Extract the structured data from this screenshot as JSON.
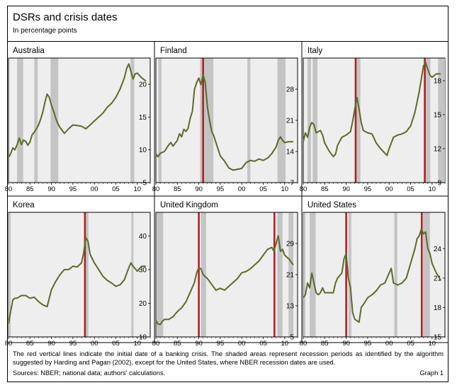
{
  "header": {
    "title": "DSRs and crisis dates",
    "subtitle": "In percentage points"
  },
  "footer": {
    "note": "The red vertical lines indicate the initial date of a banking crisis. The shaded areas represent recession periods as identified by the algorithm suggested by Harding and Pagan (2002), except for the United States, where NBER recession dates are used.",
    "sources": "Sources: NBER; national data; authors' calculations.",
    "graph_number": "Graph 1"
  },
  "colors": {
    "line": "#5a6b2a",
    "crisis": "#b22222",
    "recession": "#c4c4c4",
    "panel_bg": "#eeeeee"
  },
  "chart_data": [
    {
      "type": "line",
      "title": "Australia",
      "x_range": [
        1980,
        2013
      ],
      "x_ticks": [
        80,
        85,
        90,
        95,
        "00",
        "05",
        10
      ],
      "ylim": [
        5,
        24
      ],
      "y_ticks": [
        5,
        10,
        15,
        20
      ],
      "recessions": [
        [
          1982.0,
          1983.4
        ],
        [
          1986.0,
          1986.8
        ],
        [
          1989.8,
          1991.6
        ],
        [
          2008.4,
          2009.3
        ]
      ],
      "crises": [],
      "series": [
        {
          "x": [
            1980,
            1980.5,
            1981,
            1981.5,
            1982,
            1982.5,
            1983,
            1983.5,
            1984,
            1984.5,
            1985,
            1985.5,
            1986,
            1986.5,
            1987,
            1987.5,
            1988,
            1988.5,
            1989,
            1989.5,
            1990,
            1990.5,
            1991,
            1991.5,
            1992,
            1993,
            1994,
            1995,
            1996,
            1997,
            1998,
            1999,
            2000,
            2001,
            2002,
            2003,
            2004,
            2005,
            2006,
            2007,
            2007.5,
            2008,
            2008.5,
            2009,
            2009.5,
            2010,
            2011,
            2012
          ],
          "values": [
            8.8,
            9.4,
            10.3,
            10.0,
            10.8,
            11.8,
            10.8,
            11.5,
            11.3,
            10.7,
            11.2,
            12.3,
            12.7,
            13.2,
            13.8,
            14.7,
            15.8,
            17.3,
            18.5,
            18.0,
            16.8,
            15.9,
            14.8,
            14.0,
            13.4,
            12.5,
            13.2,
            13.8,
            13.7,
            13.6,
            13.2,
            13.8,
            14.4,
            15.0,
            15.6,
            16.5,
            17.1,
            18.0,
            19.3,
            21.0,
            22.4,
            23.1,
            22.0,
            20.8,
            21.6,
            21.7,
            21.0,
            20.5
          ]
        }
      ]
    },
    {
      "type": "line",
      "title": "Finland",
      "x_range": [
        1980,
        2013
      ],
      "x_ticks": [
        80,
        85,
        90,
        95,
        "00",
        "05",
        10
      ],
      "ylim": [
        7,
        35
      ],
      "y_ticks": [
        7,
        14,
        21,
        28
      ],
      "recessions": [
        [
          1980.6,
          1981.3
        ],
        [
          1990.3,
          1993.4
        ],
        [
          2001.3,
          2002.0
        ],
        [
          2008.3,
          2010.2
        ]
      ],
      "crises": [
        1991.0
      ],
      "series": [
        {
          "x": [
            1980,
            1980.5,
            1981,
            1982,
            1983,
            1983.5,
            1984,
            1985,
            1985.5,
            1986,
            1986.5,
            1987,
            1987.5,
            1988,
            1988.5,
            1989,
            1989.5,
            1990,
            1990.5,
            1991,
            1991.5,
            1992,
            1992.5,
            1993,
            1993.5,
            1994,
            1995,
            1996,
            1997,
            1998,
            1999,
            2000,
            2001,
            2002,
            2003,
            2004,
            2005,
            2006,
            2007,
            2008,
            2008.5,
            2009,
            2009.5,
            2010,
            2011,
            2012
          ],
          "values": [
            13.5,
            12.8,
            13.6,
            14.0,
            15.5,
            16.0,
            15.2,
            16.5,
            18.0,
            17.3,
            19.0,
            18.5,
            19.2,
            21.5,
            23.0,
            28.0,
            29.5,
            30.5,
            29.0,
            31.2,
            29.5,
            24.0,
            21.0,
            18.5,
            17.5,
            16.0,
            13.0,
            11.8,
            10.3,
            9.8,
            10.0,
            10.2,
            11.5,
            12.0,
            11.8,
            12.3,
            12.0,
            12.5,
            13.5,
            15.0,
            16.5,
            17.3,
            16.5,
            16.0,
            16.2,
            16.2
          ]
        }
      ]
    },
    {
      "type": "line",
      "title": "Italy",
      "x_range": [
        1980,
        2013
      ],
      "x_ticks": [
        80,
        85,
        90,
        95,
        "00",
        "05",
        10
      ],
      "ylim": [
        9,
        20
      ],
      "y_ticks": [
        9,
        12,
        15,
        18
      ],
      "recessions": [
        [
          1981.0,
          1981.8
        ],
        [
          1982.2,
          1983.3
        ],
        [
          1992.2,
          1993.3
        ],
        [
          2008.2,
          2009.6
        ],
        [
          2011.4,
          2013.0
        ]
      ],
      "crises": [
        1992.2,
        2008.3
      ],
      "series": [
        {
          "x": [
            1980,
            1980.5,
            1981,
            1981.5,
            1982,
            1982.5,
            1983,
            1983.5,
            1984,
            1984.5,
            1985,
            1986,
            1987,
            1987.5,
            1988,
            1989,
            1990,
            1991,
            1991.5,
            1992,
            1992.5,
            1993,
            1993.5,
            1994,
            1995,
            1996,
            1997,
            1998,
            1999,
            1999.5,
            2000,
            2001,
            2002,
            2003,
            2004,
            2005,
            2006,
            2007,
            2007.5,
            2008,
            2008.5,
            2009,
            2009.5,
            2010,
            2011,
            2012
          ],
          "values": [
            12.6,
            13.4,
            13.0,
            13.9,
            14.3,
            14.1,
            13.4,
            13.5,
            13.6,
            13.2,
            12.5,
            11.8,
            11.3,
            11.5,
            12.3,
            13.0,
            13.2,
            13.5,
            14.4,
            15.5,
            16.5,
            15.5,
            14.3,
            13.6,
            13.4,
            13.3,
            12.5,
            12.0,
            11.6,
            11.4,
            12.0,
            13.0,
            13.2,
            13.3,
            13.5,
            14.0,
            15.2,
            17.0,
            18.2,
            19.3,
            19.6,
            19.0,
            18.5,
            18.3,
            18.6,
            18.6
          ]
        }
      ]
    },
    {
      "type": "line",
      "title": "Korea",
      "x_range": [
        1980,
        2013
      ],
      "x_ticks": [
        80,
        85,
        90,
        95,
        "00",
        "05",
        10
      ],
      "ylim": [
        10,
        47
      ],
      "y_ticks": [
        10,
        20,
        30,
        40
      ],
      "recessions": [
        [
          1980.0,
          1980.5
        ],
        [
          1997.9,
          1998.6
        ],
        [
          2008.6,
          2009.1
        ]
      ],
      "crises": [
        1997.8
      ],
      "series": [
        {
          "x": [
            1980,
            1980.5,
            1981,
            1981.5,
            1982,
            1983,
            1984,
            1985,
            1986,
            1987,
            1988,
            1989,
            1990,
            1991,
            1992,
            1993,
            1994,
            1995,
            1996,
            1997,
            1997.5,
            1998,
            1998.5,
            1999,
            2000,
            2001,
            2002,
            2003,
            2004,
            2005,
            2006,
            2007,
            2008,
            2008.5,
            2009,
            2010,
            2011,
            2012
          ],
          "values": [
            14.0,
            17.5,
            21.0,
            21.5,
            21.5,
            22.3,
            22.3,
            21.5,
            21.8,
            20.5,
            19.5,
            19.0,
            24.0,
            26.5,
            28.5,
            30.0,
            30.0,
            31.0,
            30.8,
            32.0,
            35.0,
            39.5,
            38.5,
            34.5,
            32.0,
            30.0,
            28.0,
            26.8,
            26.0,
            25.0,
            25.5,
            27.0,
            30.5,
            32.0,
            31.0,
            29.5,
            31.0,
            31.0
          ]
        }
      ]
    },
    {
      "type": "line",
      "title": "United Kingdom",
      "x_range": [
        1980,
        2013
      ],
      "x_ticks": [
        80,
        85,
        90,
        95,
        "00",
        "05",
        10
      ],
      "ylim": [
        5,
        37
      ],
      "y_ticks": [
        5,
        13,
        21,
        29
      ],
      "recessions": [
        [
          1980.2,
          1981.7
        ],
        [
          1990.5,
          1991.7
        ],
        [
          2008.3,
          2009.5
        ],
        [
          2010.9,
          2012.0
        ]
      ],
      "crises": [
        1990.0,
        2007.6
      ],
      "series": [
        {
          "x": [
            1980,
            1980.5,
            1981,
            1981.5,
            1982,
            1983,
            1984,
            1985,
            1986,
            1987,
            1988,
            1989,
            1989.5,
            1990,
            1990.5,
            1991,
            1992,
            1993,
            1994,
            1995,
            1996,
            1997,
            1998,
            1999,
            2000,
            2001,
            2002,
            2003,
            2004,
            2005,
            2006,
            2007,
            2007.5,
            2008,
            2008.5,
            2009,
            2009.5,
            2010,
            2011,
            2012
          ],
          "values": [
            9.2,
            8.3,
            8.2,
            9.0,
            9.5,
            9.5,
            10.2,
            11.5,
            12.5,
            14.0,
            16.5,
            19.0,
            21.5,
            22.8,
            22.5,
            21.0,
            20.0,
            18.5,
            17.0,
            17.5,
            17.0,
            18.0,
            19.0,
            20.0,
            21.5,
            21.8,
            22.5,
            23.5,
            24.5,
            26.0,
            27.5,
            28.0,
            27.0,
            29.0,
            31.0,
            27.0,
            27.5,
            26.0,
            25.0,
            23.5
          ]
        }
      ]
    },
    {
      "type": "line",
      "title": "United States",
      "x_range": [
        1980,
        2013
      ],
      "x_ticks": [
        80,
        85,
        90,
        95,
        "00",
        "05",
        10
      ],
      "ylim": [
        15,
        27.7
      ],
      "y_ticks": [
        15,
        18,
        21,
        24
      ],
      "recessions": [
        [
          1980.0,
          1980.5
        ],
        [
          1981.5,
          1982.9
        ],
        [
          1990.5,
          1991.2
        ],
        [
          2001.2,
          2001.9
        ],
        [
          2007.9,
          2009.5
        ]
      ],
      "crises": [
        1990.0,
        2007.6
      ],
      "series": [
        {
          "x": [
            1980,
            1980.5,
            1981,
            1981.5,
            1982,
            1983,
            1983.5,
            1984,
            1984.5,
            1985,
            1986,
            1987,
            1987.5,
            1988,
            1989,
            1989.5,
            1990,
            1990.5,
            1991,
            1991.5,
            1992,
            1993,
            1993.5,
            1994,
            1995,
            1996,
            1997,
            1998,
            1999,
            2000,
            2000.5,
            2001,
            2002,
            2003,
            2004,
            2005,
            2006,
            2006.5,
            2007,
            2007.5,
            2008,
            2008.5,
            2009,
            2009.5,
            2010,
            2011,
            2012
          ],
          "values": [
            19.0,
            19.3,
            20.5,
            20.0,
            21.5,
            19.5,
            19.3,
            19.5,
            20.0,
            19.5,
            19.5,
            19.5,
            20.5,
            21.0,
            21.5,
            23.0,
            23.5,
            21.0,
            20.0,
            17.5,
            16.8,
            16.5,
            18.0,
            18.3,
            19.0,
            19.3,
            19.7,
            20.3,
            20.5,
            21.5,
            22.0,
            20.5,
            20.3,
            20.5,
            21.0,
            22.5,
            24.0,
            25.0,
            25.3,
            26.0,
            25.5,
            25.7,
            24.0,
            23.5,
            22.5,
            21.5,
            20.8
          ]
        }
      ]
    }
  ]
}
